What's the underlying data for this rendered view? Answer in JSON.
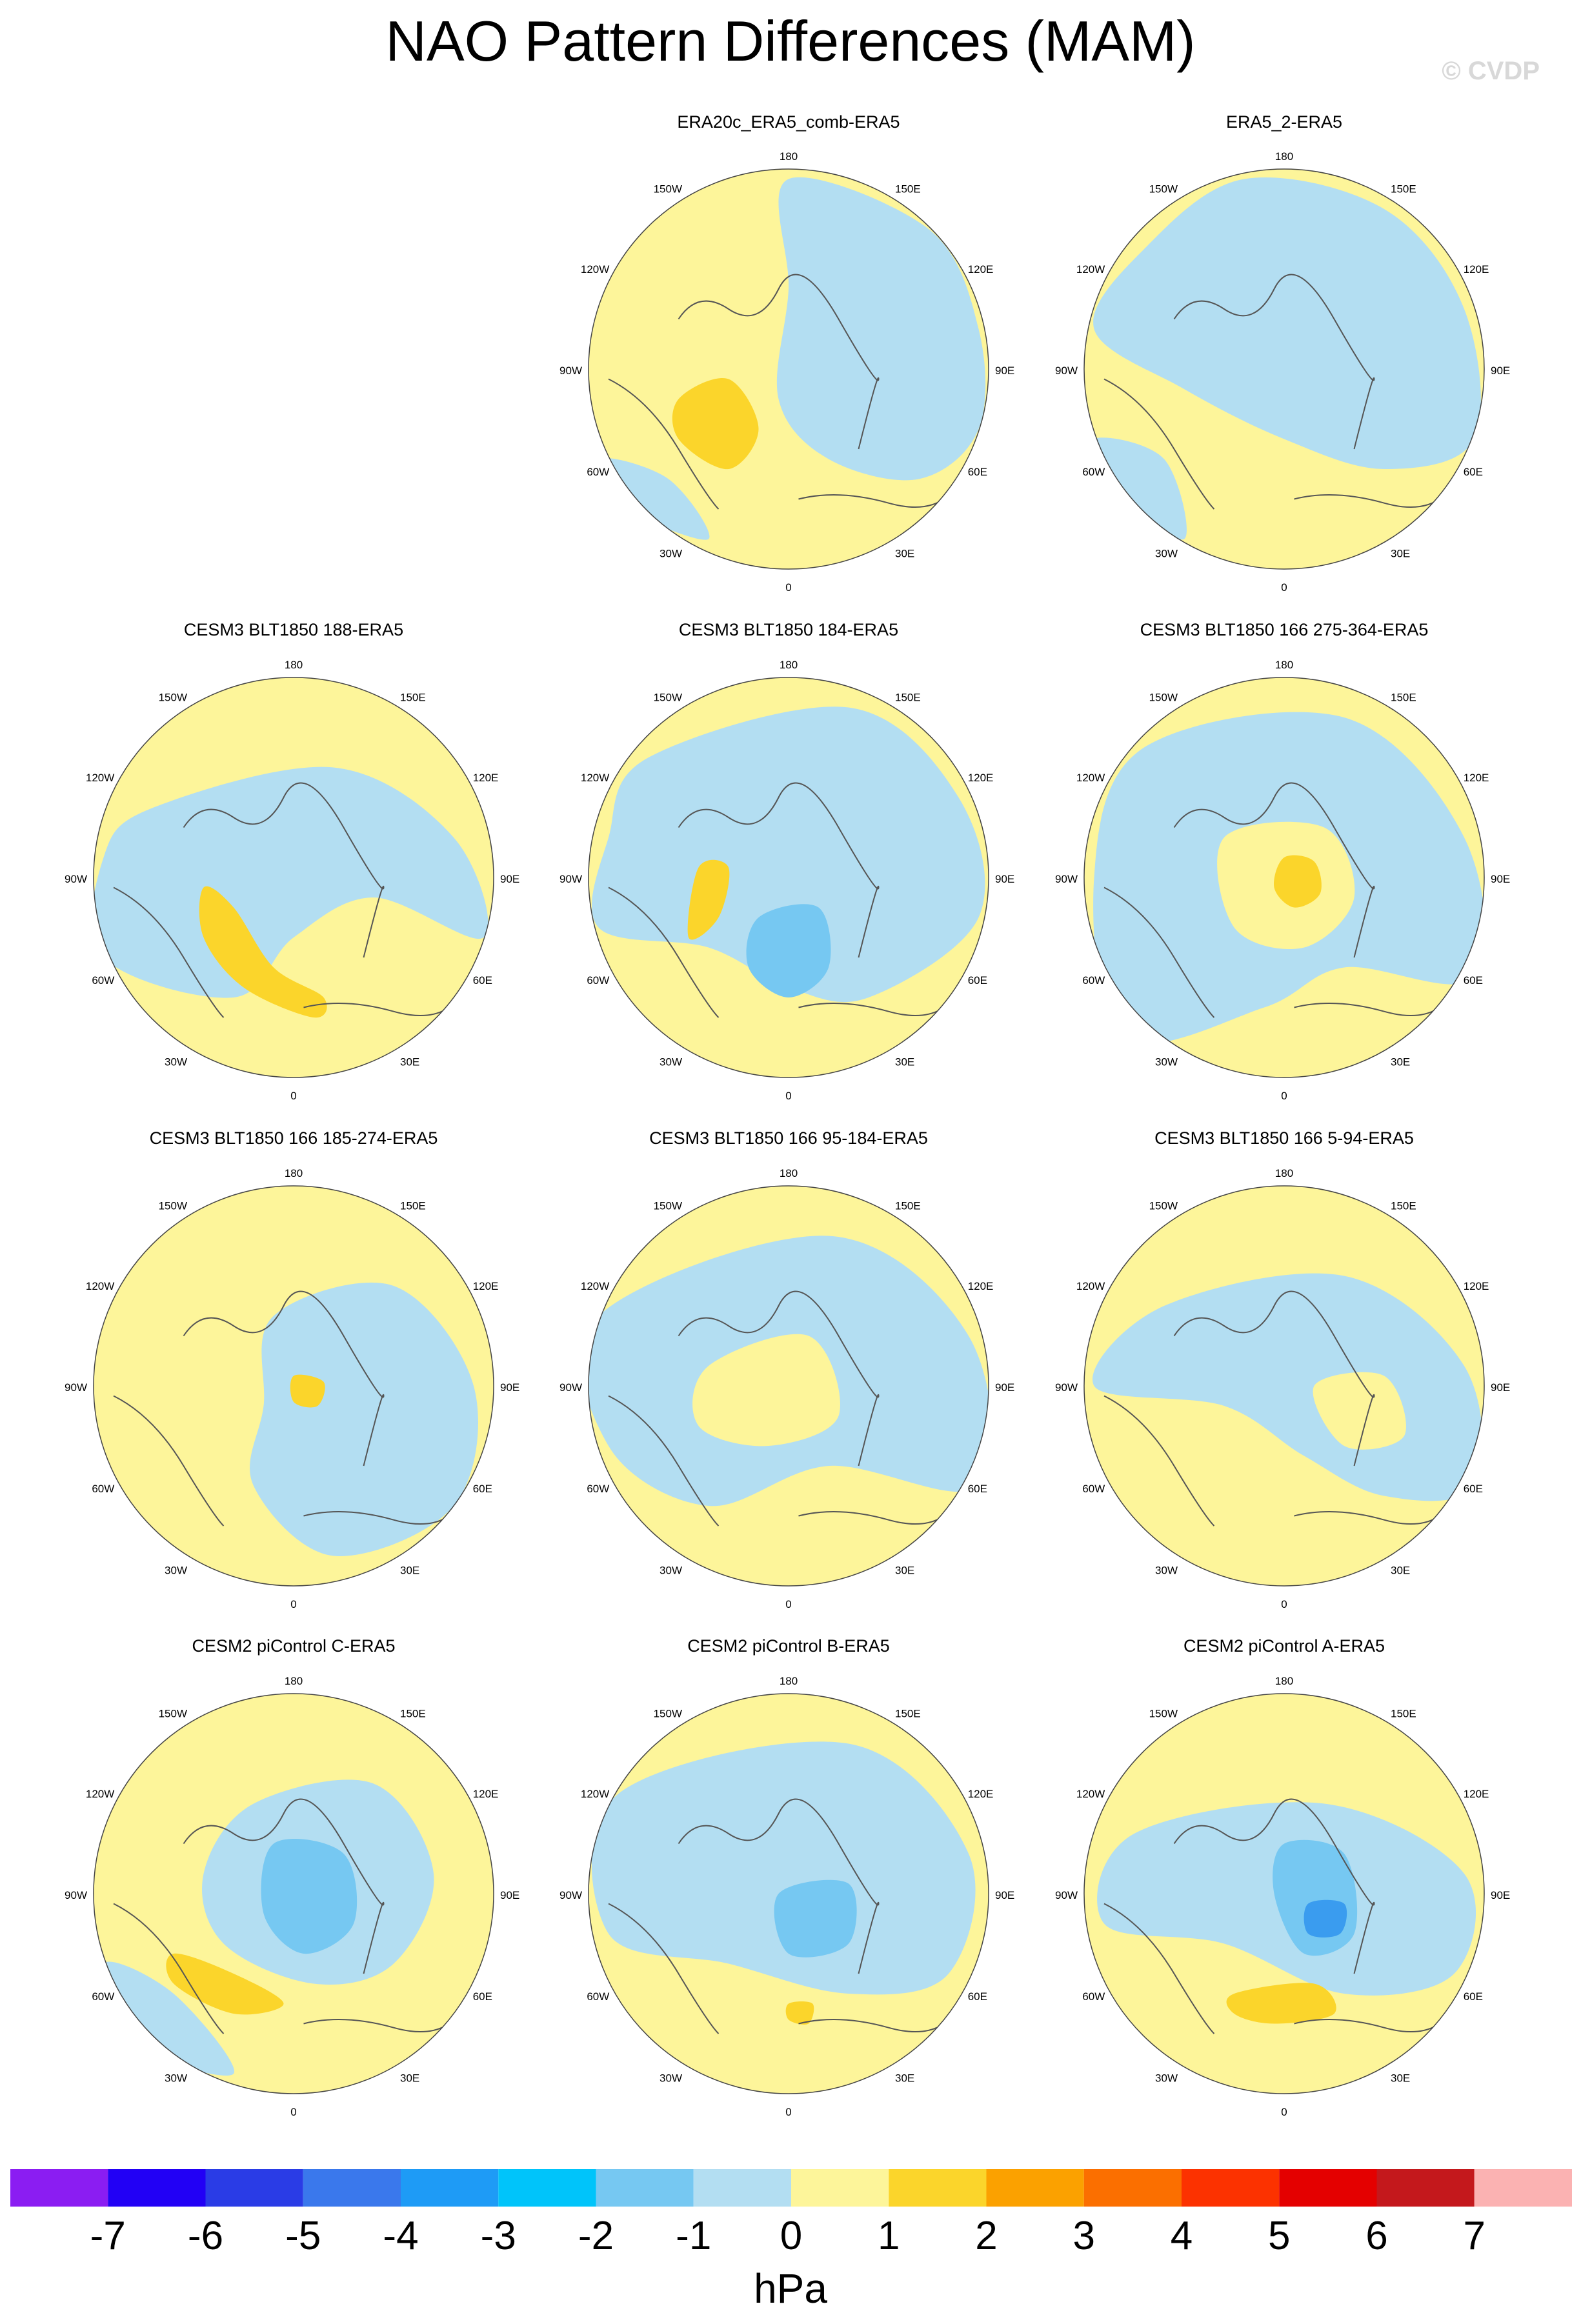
{
  "header": {
    "title": "NAO Pattern Differences (MAM)",
    "copyright": "© CVDP"
  },
  "map_labels": {
    "top": "180",
    "bottom": "0",
    "left": "90W",
    "right": "90E",
    "upper_left_outer": "120W",
    "upper_left_inner": "150W",
    "upper_right_inner": "150E",
    "upper_right_outer": "120E",
    "lower_left_outer": "60W",
    "lower_left_inner": "30W",
    "lower_right_inner": "30E",
    "lower_right_outer": "60E"
  },
  "panels": [
    {
      "title": "ERA20c_ERA5_comb-ERA5",
      "row": 0,
      "col": 1
    },
    {
      "title": "ERA5_2-ERA5",
      "row": 0,
      "col": 2
    },
    {
      "title": "CESM3 BLT1850 188-ERA5",
      "row": 1,
      "col": 0
    },
    {
      "title": "CESM3 BLT1850 184-ERA5",
      "row": 1,
      "col": 1
    },
    {
      "title": "CESM3 BLT1850 166 275-364-ERA5",
      "row": 1,
      "col": 2
    },
    {
      "title": "CESM3 BLT1850 166 185-274-ERA5",
      "row": 2,
      "col": 0
    },
    {
      "title": "CESM3 BLT1850 166 95-184-ERA5",
      "row": 2,
      "col": 1
    },
    {
      "title": "CESM3 BLT1850 166 5-94-ERA5",
      "row": 2,
      "col": 2
    },
    {
      "title": "CESM2 piControl C-ERA5",
      "row": 3,
      "col": 0
    },
    {
      "title": "CESM2 piControl B-ERA5",
      "row": 3,
      "col": 1
    },
    {
      "title": "CESM2 piControl A-ERA5",
      "row": 3,
      "col": 2
    }
  ],
  "colorbar": {
    "colors": [
      "#8b1df2",
      "#2200f5",
      "#2a3ce6",
      "#3a78ec",
      "#1e9bf6",
      "#00c4fa",
      "#76c8f2",
      "#b3def2",
      "#fdf59a",
      "#fbd52b",
      "#fba100",
      "#fb6f00",
      "#fc3200",
      "#e40000",
      "#c4181c",
      "#fbb2b2"
    ],
    "tick_labels": [
      "-7",
      "-6",
      "-5",
      "-4",
      "-3",
      "-2",
      "-1",
      "0",
      "1",
      "2",
      "3",
      "4",
      "5",
      "6",
      "7"
    ],
    "units": "hPa"
  },
  "field_colors": {
    "neutral_positive": "#fdf59a",
    "slight_negative": "#b3def2",
    "moderate_negative": "#76c8f2",
    "strong_negative": "#3a9cef",
    "moderate_positive": "#fbd52b",
    "stronger_positive": "#fba100",
    "coastline": "#555555"
  }
}
